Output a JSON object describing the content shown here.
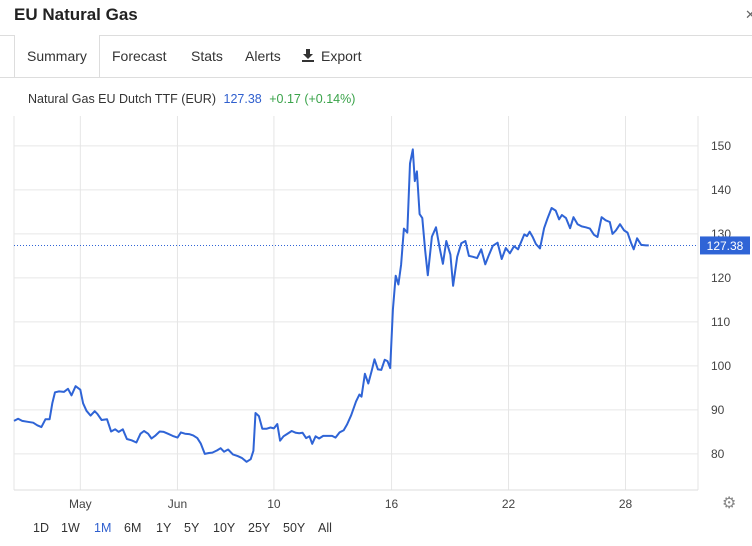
{
  "header": {
    "title": "EU Natural Gas"
  },
  "tabs": [
    {
      "label": "Summary",
      "active": true
    },
    {
      "label": "Forecast"
    },
    {
      "label": "Stats"
    },
    {
      "label": "Alerts"
    },
    {
      "label": "Export",
      "icon": "download-icon"
    }
  ],
  "quote": {
    "name": "Natural Gas EU Dutch TTF (EUR)",
    "price": "127.38",
    "change": "+0.17 (+0.14%)"
  },
  "colors": {
    "line": "#2f64d6",
    "accent": "#2f5fce",
    "positive": "#3aa34a",
    "grid": "#e6e6e6"
  },
  "range_buttons": [
    "1D",
    "1W",
    "1M",
    "6M",
    "1Y",
    "5Y",
    "10Y",
    "25Y",
    "50Y",
    "All"
  ],
  "active_range": "1M",
  "settings_icon": "gear-icon",
  "chart_data": {
    "type": "line",
    "title": "",
    "xlabel": "",
    "ylabel": "",
    "x_ticks": [
      {
        "label": "May",
        "t": 0.097
      },
      {
        "label": "Jun",
        "t": 0.239
      },
      {
        "label": "10",
        "t": 0.38
      },
      {
        "label": "16",
        "t": 0.552
      },
      {
        "label": "22",
        "t": 0.723
      },
      {
        "label": "28",
        "t": 0.894
      }
    ],
    "y_ticks": [
      80,
      90,
      100,
      110,
      120,
      130,
      140,
      150
    ],
    "ylim": [
      71.8,
      156.8
    ],
    "last_value": "127.38",
    "last_value_y": 127.38,
    "grid": true,
    "series": [
      {
        "values": [
          [
            0.0,
            87.5
          ],
          [
            0.006,
            88.0
          ],
          [
            0.012,
            87.5
          ],
          [
            0.02,
            87.3
          ],
          [
            0.028,
            87.1
          ],
          [
            0.034,
            86.5
          ],
          [
            0.04,
            86.1
          ],
          [
            0.046,
            87.9
          ],
          [
            0.052,
            87.9
          ],
          [
            0.056,
            91.5
          ],
          [
            0.06,
            94.0
          ],
          [
            0.066,
            94.2
          ],
          [
            0.073,
            94.1
          ],
          [
            0.079,
            94.8
          ],
          [
            0.084,
            93.3
          ],
          [
            0.09,
            95.4
          ],
          [
            0.097,
            94.6
          ],
          [
            0.101,
            91.5
          ],
          [
            0.106,
            89.8
          ],
          [
            0.112,
            88.7
          ],
          [
            0.118,
            89.7
          ],
          [
            0.122,
            89.1
          ],
          [
            0.128,
            87.7
          ],
          [
            0.136,
            87.9
          ],
          [
            0.142,
            85.1
          ],
          [
            0.148,
            85.6
          ],
          [
            0.153,
            85.0
          ],
          [
            0.159,
            85.6
          ],
          [
            0.165,
            83.4
          ],
          [
            0.172,
            83.1
          ],
          [
            0.179,
            82.6
          ],
          [
            0.185,
            84.6
          ],
          [
            0.19,
            85.2
          ],
          [
            0.196,
            84.6
          ],
          [
            0.201,
            83.5
          ],
          [
            0.207,
            84.2
          ],
          [
            0.213,
            85.1
          ],
          [
            0.219,
            85.0
          ],
          [
            0.225,
            84.6
          ],
          [
            0.232,
            84.1
          ],
          [
            0.239,
            83.7
          ],
          [
            0.244,
            84.9
          ],
          [
            0.25,
            84.6
          ],
          [
            0.256,
            84.5
          ],
          [
            0.262,
            84.2
          ],
          [
            0.268,
            83.6
          ],
          [
            0.273,
            82.4
          ],
          [
            0.279,
            80.0
          ],
          [
            0.285,
            80.2
          ],
          [
            0.29,
            80.3
          ],
          [
            0.297,
            80.8
          ],
          [
            0.302,
            81.3
          ],
          [
            0.307,
            80.5
          ],
          [
            0.313,
            81.0
          ],
          [
            0.32,
            79.9
          ],
          [
            0.327,
            79.5
          ],
          [
            0.333,
            79.1
          ],
          [
            0.34,
            78.2
          ],
          [
            0.346,
            78.8
          ],
          [
            0.35,
            80.7
          ],
          [
            0.353,
            89.3
          ],
          [
            0.358,
            88.6
          ],
          [
            0.363,
            85.7
          ],
          [
            0.369,
            85.7
          ],
          [
            0.375,
            86.0
          ],
          [
            0.38,
            85.8
          ],
          [
            0.385,
            86.8
          ],
          [
            0.389,
            83.0
          ],
          [
            0.394,
            84.0
          ],
          [
            0.399,
            84.5
          ],
          [
            0.406,
            85.2
          ],
          [
            0.412,
            84.8
          ],
          [
            0.417,
            84.7
          ],
          [
            0.422,
            84.8
          ],
          [
            0.427,
            83.6
          ],
          [
            0.432,
            84.0
          ],
          [
            0.436,
            82.3
          ],
          [
            0.441,
            84.0
          ],
          [
            0.446,
            83.5
          ],
          [
            0.452,
            84.1
          ],
          [
            0.458,
            84.1
          ],
          [
            0.465,
            84.1
          ],
          [
            0.47,
            83.7
          ],
          [
            0.476,
            84.9
          ],
          [
            0.482,
            85.4
          ],
          [
            0.487,
            86.7
          ],
          [
            0.493,
            88.8
          ],
          [
            0.5,
            91.9
          ],
          [
            0.505,
            93.5
          ],
          [
            0.508,
            93.0
          ],
          [
            0.513,
            98.2
          ],
          [
            0.518,
            96.0
          ],
          [
            0.523,
            98.9
          ],
          [
            0.527,
            101.5
          ],
          [
            0.532,
            99.2
          ],
          [
            0.537,
            99.1
          ],
          [
            0.542,
            101.4
          ],
          [
            0.546,
            101.1
          ],
          [
            0.55,
            99.5
          ],
          [
            0.554,
            112.8
          ],
          [
            0.558,
            120.5
          ],
          [
            0.562,
            118.5
          ],
          [
            0.566,
            123.0
          ],
          [
            0.57,
            131.2
          ],
          [
            0.575,
            130.3
          ],
          [
            0.579,
            146.0
          ],
          [
            0.583,
            149.2
          ],
          [
            0.586,
            142.0
          ],
          [
            0.589,
            144.2
          ],
          [
            0.593,
            134.5
          ],
          [
            0.597,
            133.6
          ],
          [
            0.601,
            126.4
          ],
          [
            0.605,
            120.6
          ],
          [
            0.611,
            129.4
          ],
          [
            0.617,
            131.5
          ],
          [
            0.622,
            127.1
          ],
          [
            0.627,
            123.2
          ],
          [
            0.632,
            128.4
          ],
          [
            0.638,
            125.3
          ],
          [
            0.642,
            118.2
          ],
          [
            0.648,
            124.8
          ],
          [
            0.654,
            127.9
          ],
          [
            0.66,
            128.4
          ],
          [
            0.665,
            125.0
          ],
          [
            0.671,
            124.8
          ],
          [
            0.677,
            124.5
          ],
          [
            0.683,
            126.5
          ],
          [
            0.689,
            123.1
          ],
          [
            0.694,
            125.1
          ],
          [
            0.7,
            127.3
          ],
          [
            0.707,
            128.0
          ],
          [
            0.713,
            124.3
          ],
          [
            0.719,
            126.8
          ],
          [
            0.725,
            125.6
          ],
          [
            0.731,
            127.2
          ],
          [
            0.737,
            126.5
          ],
          [
            0.741,
            128.0
          ],
          [
            0.746,
            129.9
          ],
          [
            0.75,
            129.5
          ],
          [
            0.754,
            130.5
          ],
          [
            0.758,
            129.4
          ],
          [
            0.763,
            127.7
          ],
          [
            0.769,
            126.7
          ],
          [
            0.775,
            131.3
          ],
          [
            0.78,
            133.5
          ],
          [
            0.786,
            135.9
          ],
          [
            0.792,
            135.3
          ],
          [
            0.797,
            133.3
          ],
          [
            0.801,
            134.3
          ],
          [
            0.807,
            133.6
          ],
          [
            0.813,
            131.3
          ],
          [
            0.818,
            133.8
          ],
          [
            0.824,
            132.2
          ],
          [
            0.83,
            131.7
          ],
          [
            0.836,
            131.5
          ],
          [
            0.842,
            131.2
          ],
          [
            0.848,
            129.8
          ],
          [
            0.853,
            129.3
          ],
          [
            0.859,
            133.8
          ],
          [
            0.865,
            133.1
          ],
          [
            0.871,
            132.7
          ],
          [
            0.875,
            130.0
          ],
          [
            0.88,
            130.8
          ],
          [
            0.886,
            132.2
          ],
          [
            0.892,
            130.8
          ],
          [
            0.897,
            130.3
          ],
          [
            0.902,
            128.0
          ],
          [
            0.906,
            126.5
          ],
          [
            0.911,
            129.0
          ],
          [
            0.917,
            127.5
          ],
          [
            0.924,
            127.4
          ],
          [
            0.928,
            127.38
          ]
        ]
      }
    ]
  }
}
